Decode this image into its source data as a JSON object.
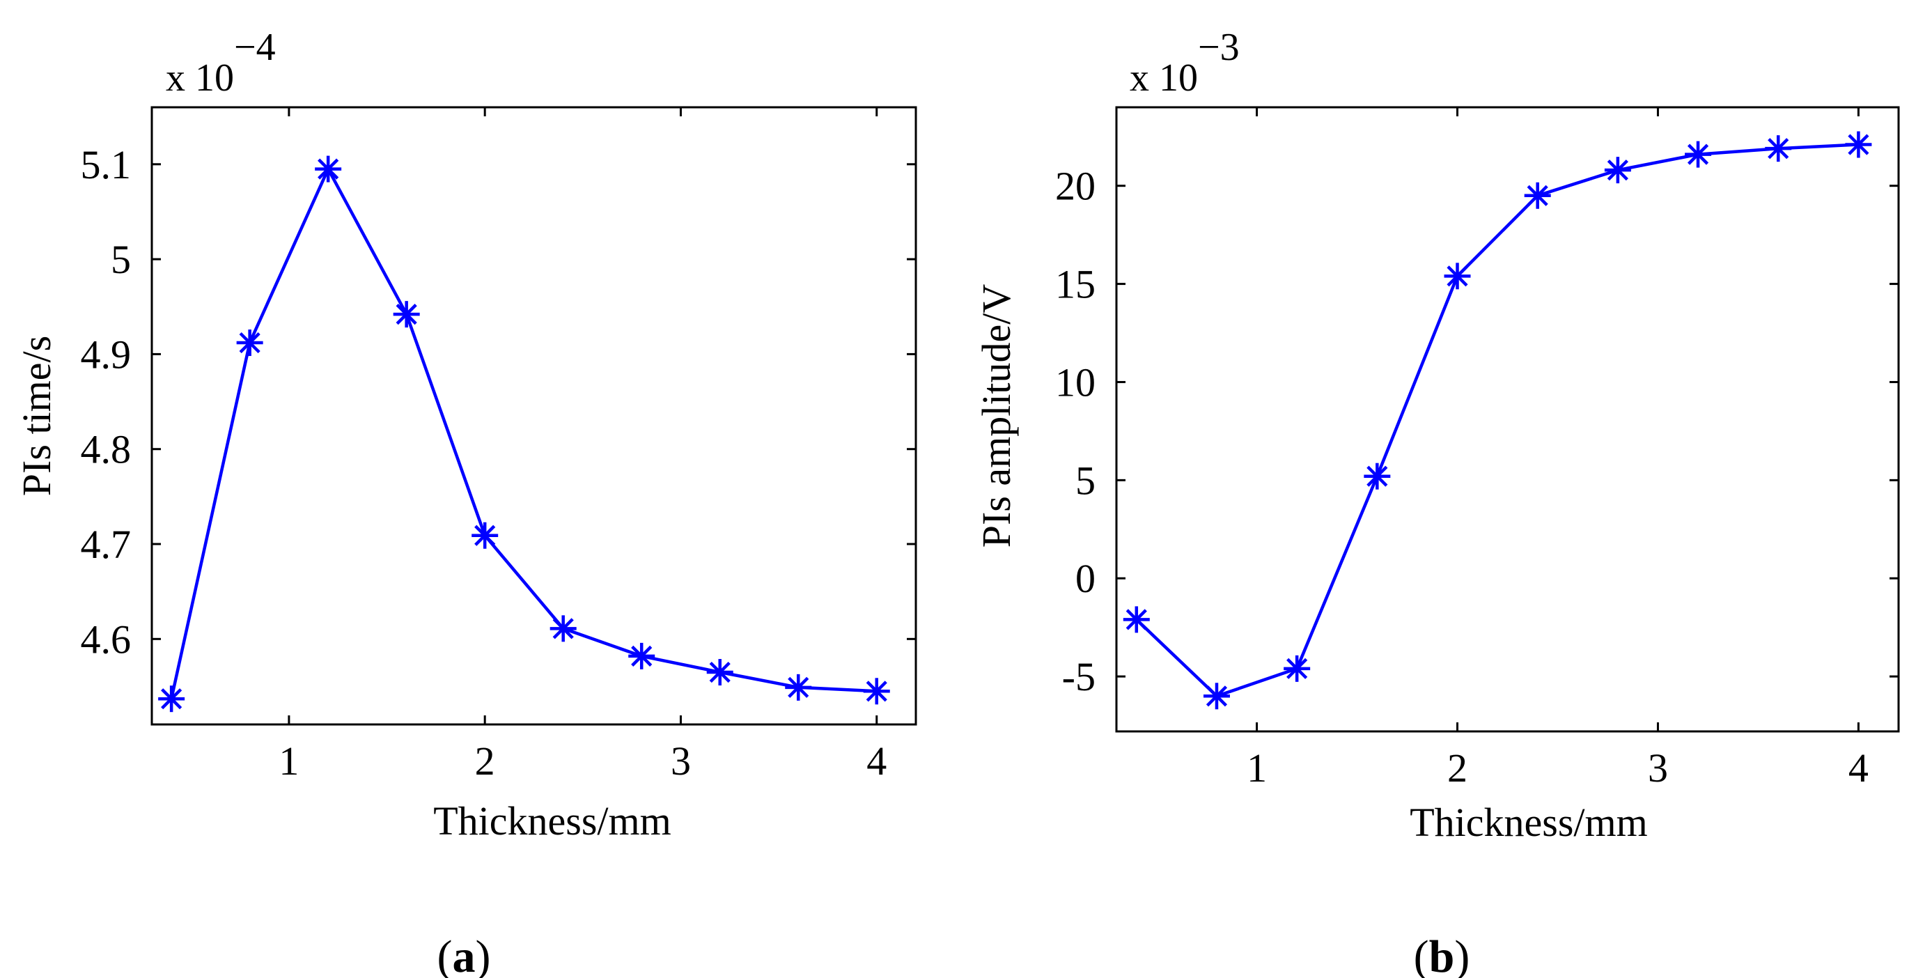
{
  "figure": {
    "panels": [
      {
        "label_open": "(",
        "label_letter": "a",
        "label_close": ")"
      },
      {
        "label_open": "(",
        "label_letter": "b",
        "label_close": ")"
      }
    ]
  },
  "chart_data": [
    {
      "type": "line",
      "marker": "asterisk",
      "color": "#0000ff",
      "title": "",
      "xlabel": "Thickness/mm",
      "ylabel": "PIs time/s",
      "y_exponent_label": "x 10",
      "y_exponent": "−4",
      "xlim": [
        0.3,
        4.2
      ],
      "ylim": [
        4.51,
        5.16
      ],
      "xticks": [
        1,
        2,
        3,
        4
      ],
      "xtick_labels": [
        "1",
        "2",
        "3",
        "4"
      ],
      "yticks": [
        4.6,
        4.7,
        4.8,
        4.9,
        5.0,
        5.1
      ],
      "ytick_labels": [
        "4.6",
        "4.7",
        "4.8",
        "4.9",
        "5",
        "5.1"
      ],
      "series": [
        {
          "name": "PIs time",
          "x": [
            0.4,
            0.8,
            1.2,
            1.6,
            2.0,
            2.4,
            2.8,
            3.2,
            3.6,
            4.0
          ],
          "y": [
            4.537,
            4.912,
            5.095,
            4.942,
            4.709,
            4.611,
            4.582,
            4.565,
            4.549,
            4.545
          ]
        }
      ]
    },
    {
      "type": "line",
      "marker": "asterisk",
      "color": "#0000ff",
      "title": "",
      "xlabel": "Thickness/mm",
      "ylabel": "PIs amplitude/V",
      "y_exponent_label": "x 10",
      "y_exponent": "−3",
      "xlim": [
        0.3,
        4.2
      ],
      "ylim": [
        -7.8,
        24.0
      ],
      "xticks": [
        1,
        2,
        3,
        4
      ],
      "xtick_labels": [
        "1",
        "2",
        "3",
        "4"
      ],
      "yticks": [
        -5,
        0,
        5,
        10,
        15,
        20
      ],
      "ytick_labels": [
        "-5",
        "0",
        "5",
        "10",
        "15",
        "20"
      ],
      "series": [
        {
          "name": "PIs amplitude",
          "x": [
            0.4,
            0.8,
            1.2,
            1.6,
            2.0,
            2.4,
            2.8,
            3.2,
            3.6,
            4.0
          ],
          "y": [
            -2.1,
            -6.0,
            -4.6,
            5.2,
            15.4,
            19.5,
            20.8,
            21.6,
            21.9,
            22.1
          ]
        }
      ]
    }
  ]
}
